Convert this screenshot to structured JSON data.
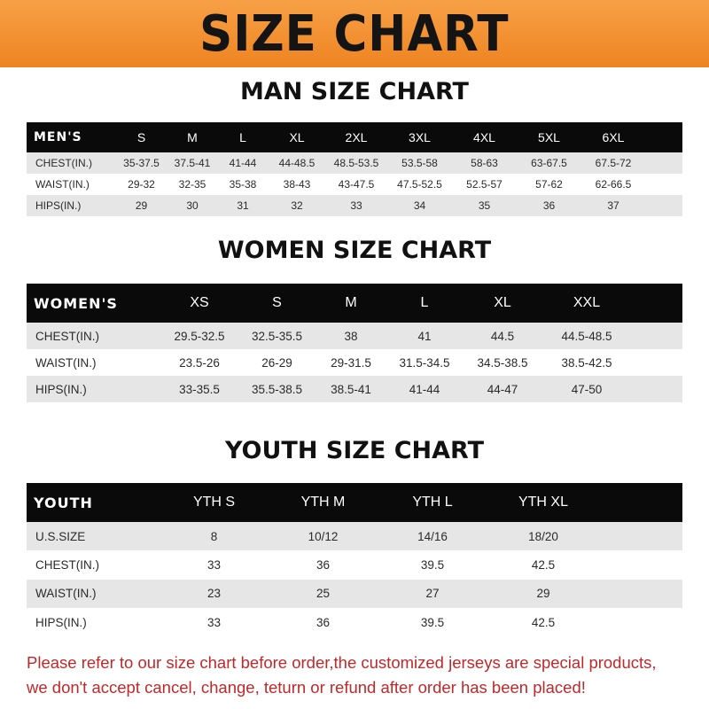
{
  "banner_title": "SIZE CHART",
  "men": {
    "title": "MAN SIZE CHART",
    "header": [
      "MEN'S",
      "S",
      "M",
      "L",
      "XL",
      "2XL",
      "3XL",
      "4XL",
      "5XL",
      "6XL"
    ],
    "rows": [
      [
        "CHEST(IN.)",
        "35-37.5",
        "37.5-41",
        "41-44",
        "44-48.5",
        "48.5-53.5",
        "53.5-58",
        "58-63",
        "63-67.5",
        "67.5-72"
      ],
      [
        "WAIST(IN.)",
        "29-32",
        "32-35",
        "35-38",
        "38-43",
        "43-47.5",
        "47.5-52.5",
        "52.5-57",
        "57-62",
        "62-66.5"
      ],
      [
        "HIPS(IN.)",
        "29",
        "30",
        "31",
        "32",
        "33",
        "34",
        "35",
        "36",
        "37"
      ]
    ]
  },
  "women": {
    "title": "WOMEN SIZE CHART",
    "header": [
      "WOMEN'S",
      "XS",
      "S",
      "M",
      "L",
      "XL",
      "XXL"
    ],
    "rows": [
      [
        "CHEST(IN.)",
        "29.5-32.5",
        "32.5-35.5",
        "38",
        "41",
        "44.5",
        "44.5-48.5"
      ],
      [
        "WAIST(IN.)",
        "23.5-26",
        "26-29",
        "29-31.5",
        "31.5-34.5",
        "34.5-38.5",
        "38.5-42.5"
      ],
      [
        "HIPS(IN.)",
        "33-35.5",
        "35.5-38.5",
        "38.5-41",
        "41-44",
        "44-47",
        "47-50"
      ]
    ]
  },
  "youth": {
    "title": "YOUTH SIZE CHART",
    "header": [
      "YOUTH",
      "YTH S",
      "YTH M",
      "YTH L",
      "YTH XL"
    ],
    "rows": [
      [
        "U.S.SIZE",
        "8",
        "10/12",
        "14/16",
        "18/20"
      ],
      [
        "CHEST(IN.)",
        "33",
        "36",
        "39.5",
        "42.5"
      ],
      [
        "WAIST(IN.)",
        "23",
        "25",
        "27",
        "29"
      ],
      [
        "HIPS(IN.)",
        "33",
        "36",
        "39.5",
        "42.5"
      ]
    ]
  },
  "note": [
    "Please refer to our size chart before order,the customized jerseys are special products,",
    "we don't accept cancel, change, teturn or refund after order has been placed!"
  ],
  "colors": {
    "banner": "#ee8421",
    "header_row": "#0a0a0a",
    "stripe": "#e6e6e6",
    "note": "#c0282a"
  }
}
